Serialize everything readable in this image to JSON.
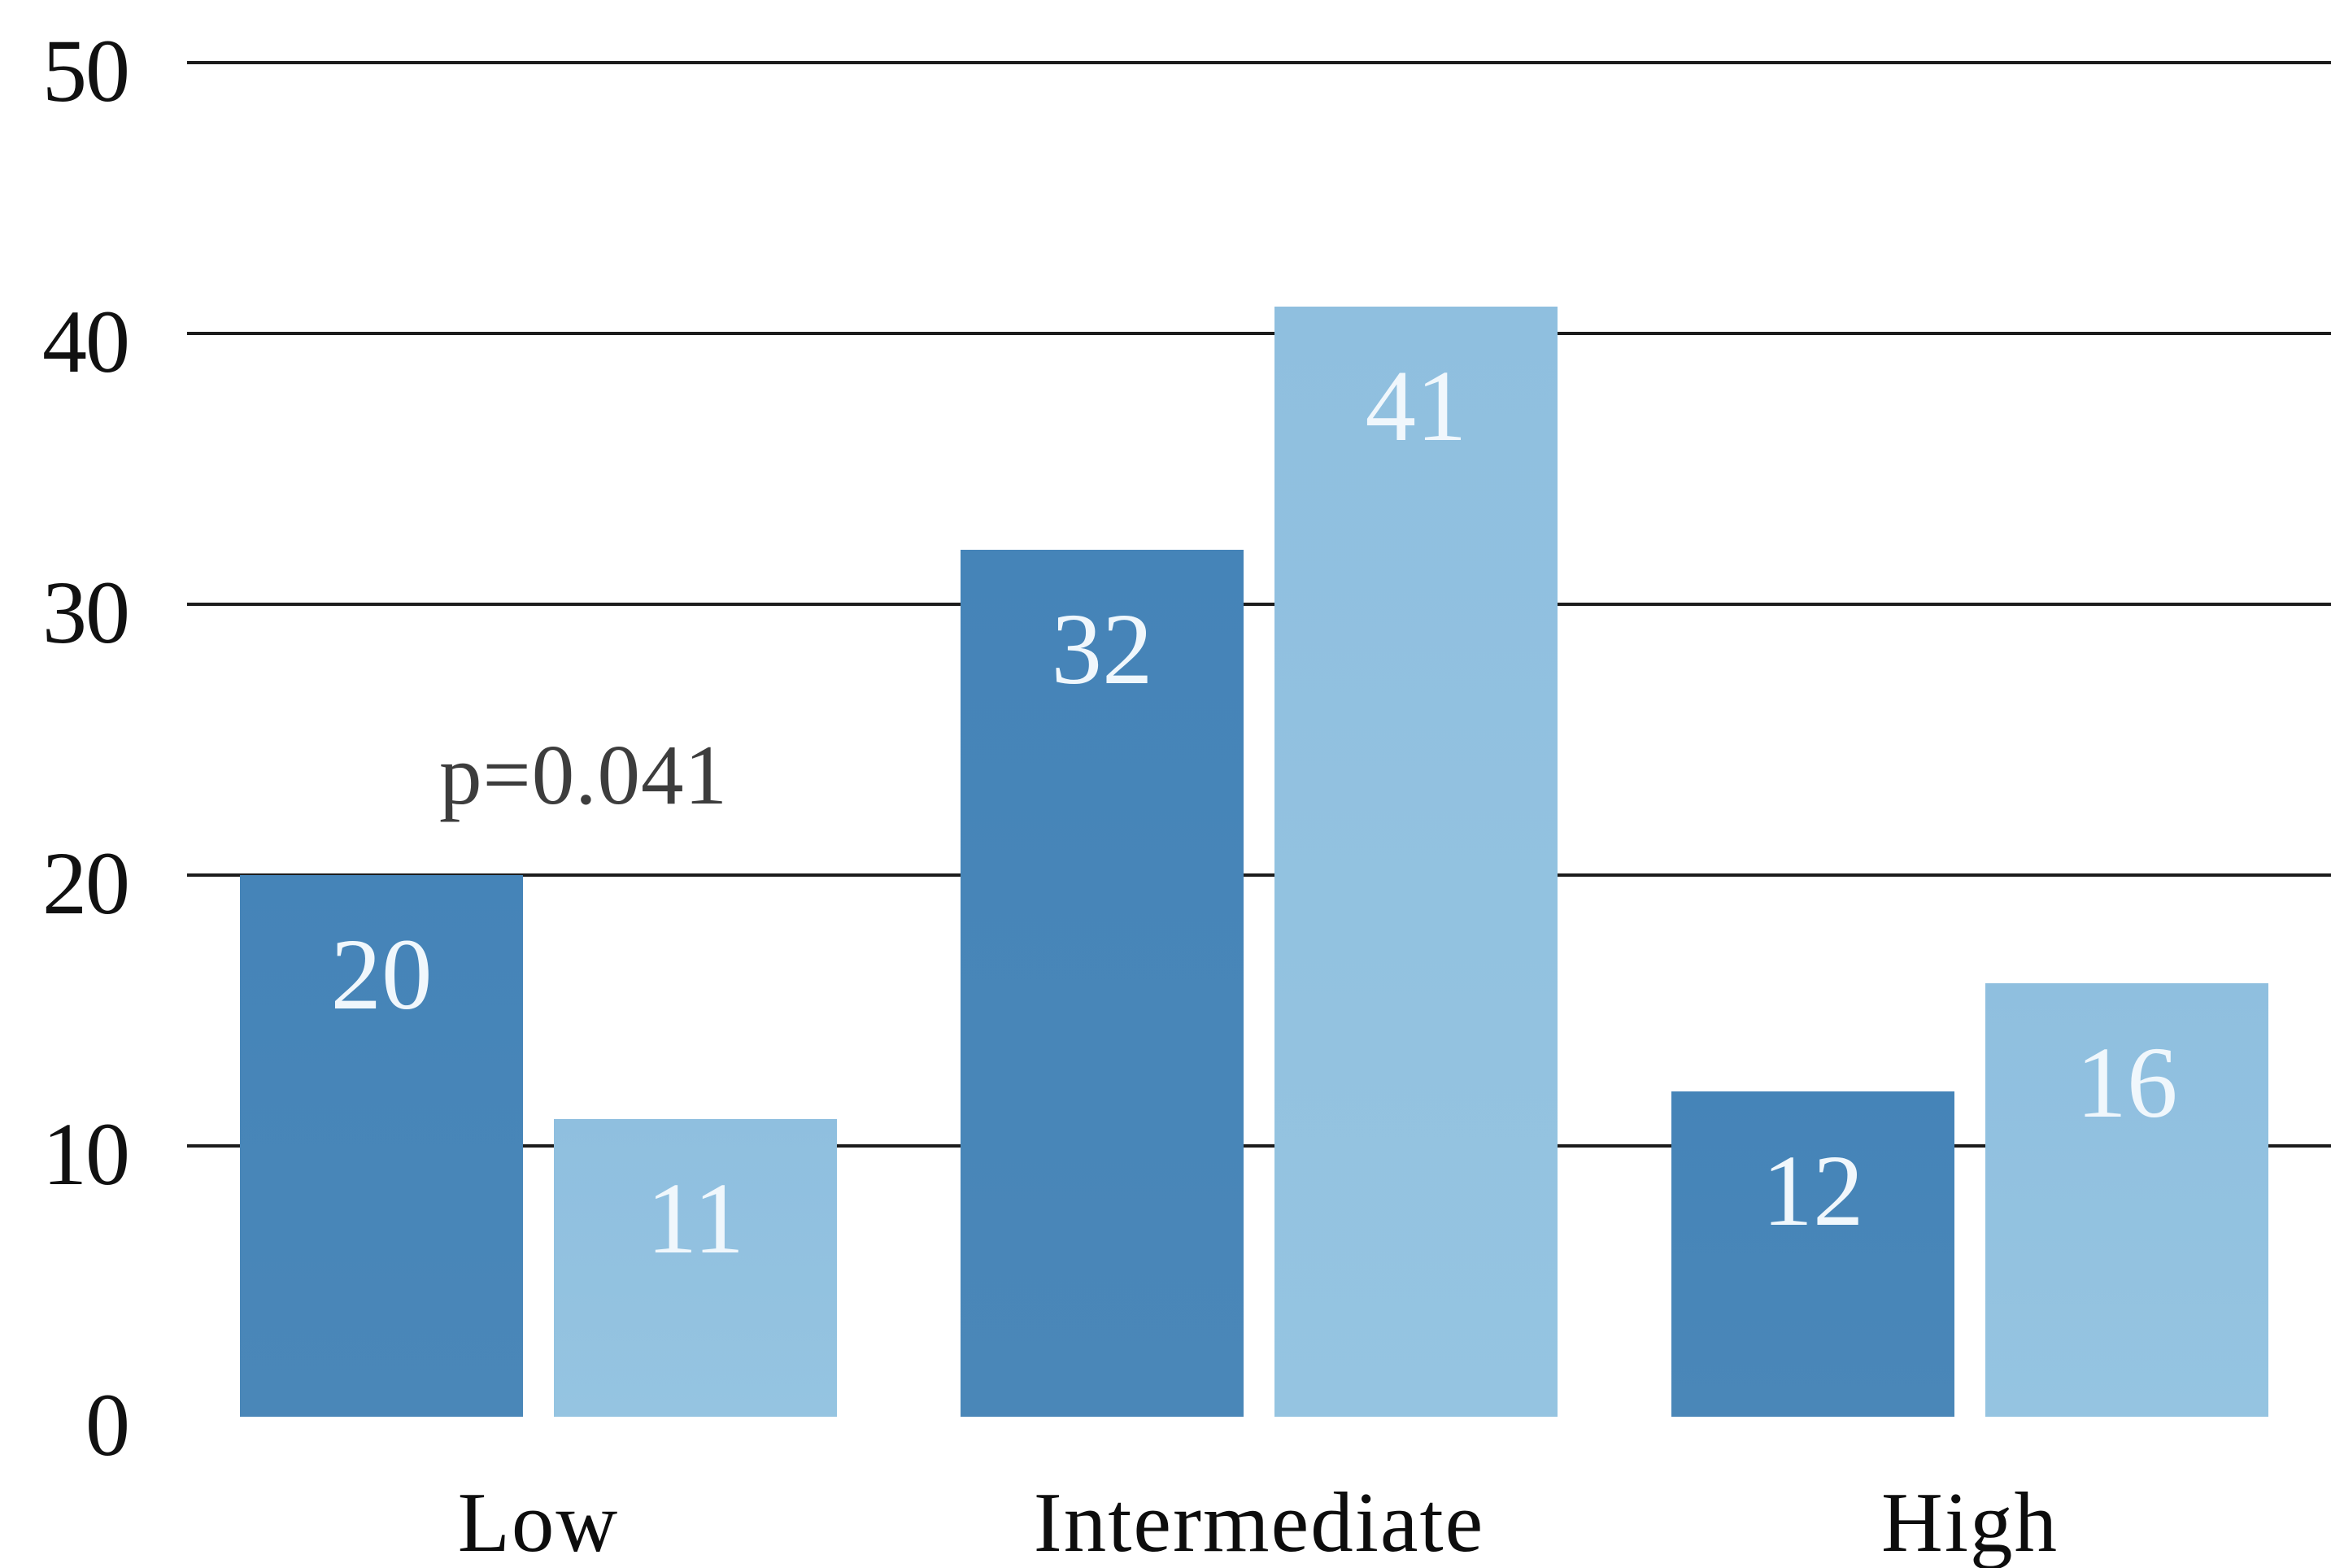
{
  "chart_data": {
    "type": "bar",
    "title": "",
    "categories": [
      "Low",
      "Intermediate",
      "High"
    ],
    "series": [
      {
        "name": "dark-blue-series",
        "color": "#4584B8",
        "color_bottom": "#4a87b8",
        "values": [
          20,
          32,
          12
        ]
      },
      {
        "name": "light-blue-series",
        "color": "#8FBFDF",
        "color_bottom": "#95c4e1",
        "values": [
          11,
          41,
          16
        ]
      }
    ],
    "value_label_color": "#f0f7fc",
    "ylim": [
      0,
      50
    ],
    "yticks": [
      0,
      10,
      20,
      30,
      40,
      50
    ],
    "grid": "horizontal-lines-for-nonzero-ticks",
    "gridline_color": "#1c1c1c",
    "legend": "none",
    "xlabel": "",
    "ylabel": "",
    "value_labels": "inside-top-centered",
    "annotation": {
      "text": "p=0.041",
      "color": "#3d3d3d",
      "near_category": "Low"
    }
  }
}
